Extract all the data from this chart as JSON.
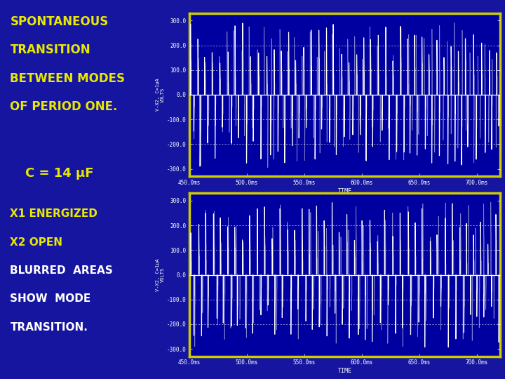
{
  "background_color": "#1515a0",
  "text_color_yellow": "#e8e800",
  "text_color_white": "#ffffff",
  "plot_bg_color": "#0000a0",
  "plot_border_color": "#cccc00",
  "signal_color": "#ffffff",
  "title_lines": [
    "SPONTANEOUS",
    "TRANSITION",
    "BETWEEN MODES",
    "OF PERIOD ONE."
  ],
  "caption1": "C = 14 μF",
  "caption2_lines": [
    "X1 ENERGIZED",
    "X2 OPEN"
  ],
  "caption3_lines": [
    "BLURRED  AREAS",
    "SHOW  MODE",
    "TRANSITION."
  ],
  "ylabel_text": "V-X2, C=1μA\nVOLTS",
  "xlabel": "TIME",
  "ytick_labels": [
    "300.0",
    "200.0",
    "100.0",
    "0.0",
    "-100.0",
    "-200.0",
    "-300.0"
  ],
  "ytick_vals": [
    300,
    200,
    100,
    0,
    -100,
    -200,
    -300
  ],
  "ylim": [
    -330,
    330
  ],
  "xlim_start": 450,
  "xlim_end": 720,
  "xtick_labels": [
    "450.0ms",
    "500.0ms",
    "550.0ms",
    "600.0ms",
    "650.0ms",
    "700.0ms"
  ],
  "xtick_vals": [
    450,
    500,
    550,
    600,
    650,
    700
  ],
  "font_size_title": 12,
  "font_size_caption": 11
}
